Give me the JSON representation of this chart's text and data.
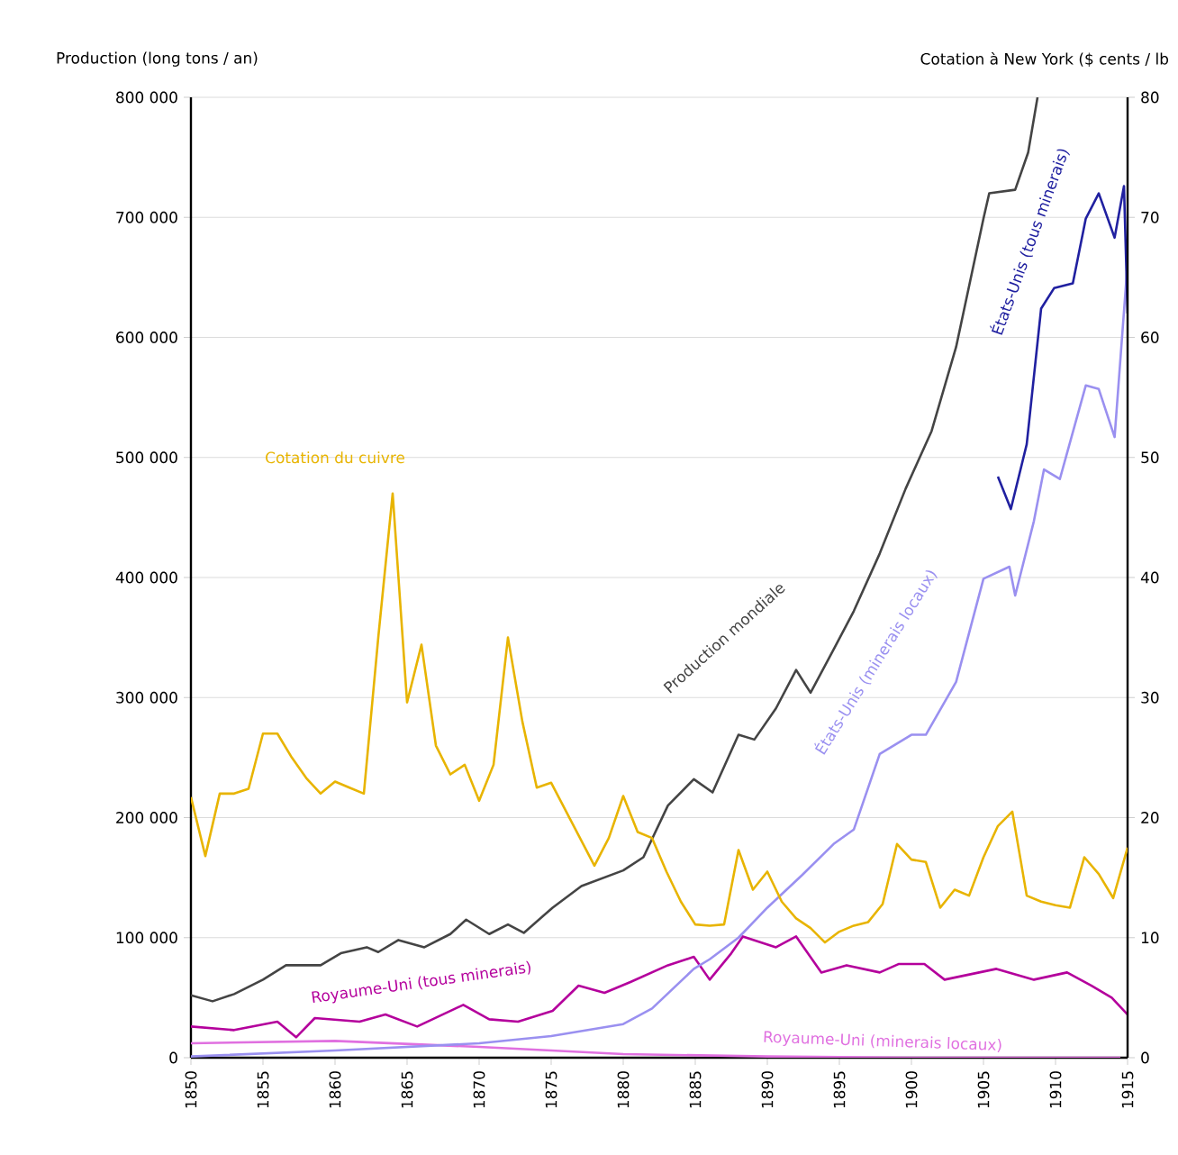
{
  "chart_data": {
    "type": "line",
    "ylabel": "Production (long tons / an)",
    "y2label": "Cotation à New York ($ cents / lb",
    "xlim": [
      1850,
      1915
    ],
    "xticks": [
      1850,
      1855,
      1860,
      1865,
      1870,
      1875,
      1880,
      1885,
      1890,
      1895,
      1900,
      1905,
      1910,
      1915
    ],
    "ylim": [
      0,
      800000
    ],
    "yticks": [
      {
        "value": 0,
        "label": "0"
      },
      {
        "value": 100000,
        "label": "100 000"
      },
      {
        "value": 200000,
        "label": "200 000"
      },
      {
        "value": 300000,
        "label": "300 000"
      },
      {
        "value": 400000,
        "label": "400 000"
      },
      {
        "value": 500000,
        "label": "500 000"
      },
      {
        "value": 600000,
        "label": "600 000"
      },
      {
        "value": 700000,
        "label": "700 000"
      },
      {
        "value": 800000,
        "label": "800 000"
      }
    ],
    "y2lim": [
      0,
      80
    ],
    "y2ticks": [
      0,
      10,
      20,
      30,
      40,
      50,
      60,
      70,
      80
    ],
    "grid": "y",
    "series": [
      {
        "name": "Cotation du cuivre",
        "color": "#e8b400",
        "axis": "y2",
        "x": [
          1850,
          1851,
          1852,
          1853,
          1854,
          1855,
          1856,
          1857,
          1858,
          1859,
          1860,
          1861,
          1862,
          1863,
          1864,
          1865,
          1866,
          1867,
          1868,
          1869,
          1870,
          1871,
          1872,
          1873,
          1874,
          1875,
          1876,
          1877,
          1878,
          1879,
          1880,
          1881,
          1882,
          1883,
          1884,
          1885,
          1886,
          1887,
          1888,
          1889,
          1890,
          1891,
          1892,
          1893,
          1894,
          1895,
          1896,
          1897,
          1898,
          1899,
          1900,
          1901,
          1902,
          1903,
          1904,
          1905,
          1906,
          1907,
          1908,
          1909,
          1910,
          1911,
          1912,
          1913,
          1914,
          1915
        ],
        "values": [
          21.7,
          16.8,
          22,
          22,
          22.4,
          27,
          27,
          25,
          23.3,
          22,
          23,
          22.5,
          22,
          35,
          47,
          29.6,
          34.4,
          26,
          23.6,
          24.4,
          21.4,
          24.4,
          35,
          28,
          22.5,
          22.9,
          20.6,
          18.3,
          16,
          18.3,
          21.8,
          18.8,
          18.3,
          15.5,
          13,
          11.1,
          11,
          11.1,
          17.3,
          14,
          15.5,
          13,
          11.6,
          10.8,
          9.6,
          10.5,
          11,
          11.3,
          12.8,
          17.8,
          16.5,
          16.3,
          12.5,
          14,
          13.5,
          16.7,
          19.3,
          20.5,
          13.5,
          13,
          12.7,
          12.5,
          16.7,
          15.3,
          13.3,
          17.5
        ]
      },
      {
        "name": "Production mondiale",
        "color": "#444444",
        "x": [
          1850,
          1851.5,
          1853,
          1855,
          1856.6,
          1859,
          1860.4,
          1862.2,
          1863,
          1864.4,
          1866.2,
          1868,
          1869.1,
          1870.7,
          1872,
          1873.1,
          1875.1,
          1877.1,
          1880,
          1881.4,
          1883.1,
          1884.9,
          1886.2,
          1888,
          1889.1,
          1890.6,
          1892,
          1893,
          1894.6,
          1896,
          1897.8,
          1899.6,
          1901.4,
          1903.1,
          1905,
          1905.4,
          1907.2,
          1908.1,
          1908.75
        ],
        "values": [
          52000,
          47000,
          53000,
          65000,
          77000,
          77000,
          87000,
          92000,
          88000,
          98000,
          92000,
          103000,
          115000,
          103000,
          111000,
          104000,
          125000,
          143000,
          156000,
          167000,
          210000,
          232000,
          221000,
          269000,
          265000,
          291000,
          323000,
          304000,
          340000,
          372000,
          420000,
          474000,
          522000,
          592000,
          699000,
          720000,
          723000,
          754000,
          800000
        ]
      },
      {
        "name": "Royaume-Uni (tous minerais)",
        "color": "#b4009c",
        "x": [
          1850,
          1853,
          1856,
          1857.3,
          1858.6,
          1861.7,
          1863.5,
          1865.7,
          1868.9,
          1870.7,
          1872.7,
          1875.1,
          1876.9,
          1878.7,
          1880.5,
          1883.1,
          1884.9,
          1886,
          1887.5,
          1888.3,
          1890.6,
          1892,
          1893.75,
          1895.5,
          1897.8,
          1899.1,
          1900.9,
          1902.3,
          1905.9,
          1908.5,
          1910.8,
          1912.5,
          1913.9,
          1915
        ],
        "values": [
          26000,
          23000,
          30000,
          17000,
          33000,
          30000,
          36000,
          26000,
          44000,
          32000,
          30000,
          39000,
          60000,
          54000,
          63000,
          77000,
          84000,
          65000,
          87000,
          101000,
          92000,
          101000,
          71000,
          77000,
          71000,
          78000,
          78000,
          65000,
          74000,
          65000,
          71000,
          60000,
          50000,
          36000
        ]
      },
      {
        "name": "Royaume-Uni (minerais locaux)",
        "color": "#e070e0",
        "x": [
          1850,
          1860,
          1870,
          1880,
          1890,
          1900,
          1914.5
        ],
        "values": [
          12000,
          14000,
          9000,
          3000,
          1000,
          0,
          0
        ]
      },
      {
        "name": "États-Unis (minerais locaux)",
        "color": "#9a90f0",
        "x": [
          1850,
          1860,
          1870,
          1875,
          1880,
          1882,
          1884.9,
          1886,
          1888,
          1890,
          1892.4,
          1894.6,
          1896,
          1897.8,
          1900,
          1901,
          1903.1,
          1905,
          1906.8,
          1907.2,
          1908.5,
          1909.2,
          1910.3,
          1912.1,
          1913,
          1914.1,
          1915
        ],
        "values": [
          1000,
          6000,
          12000,
          18000,
          28000,
          41000,
          74000,
          82000,
          100000,
          125000,
          152000,
          178000,
          190000,
          253000,
          269000,
          269000,
          313000,
          399000,
          409000,
          385000,
          447000,
          490000,
          482000,
          560000,
          557000,
          517000,
          662000
        ]
      },
      {
        "name": "États-Unis (tous minerais)",
        "color": "#2020a0",
        "x": [
          1906,
          1906.9,
          1908,
          1909,
          1909.9,
          1911.2,
          1912.1,
          1913,
          1914.1,
          1914.75,
          1915
        ],
        "values": [
          484000,
          457000,
          511000,
          624000,
          641000,
          645000,
          699000,
          720000,
          683000,
          726000,
          620000
        ]
      }
    ]
  }
}
